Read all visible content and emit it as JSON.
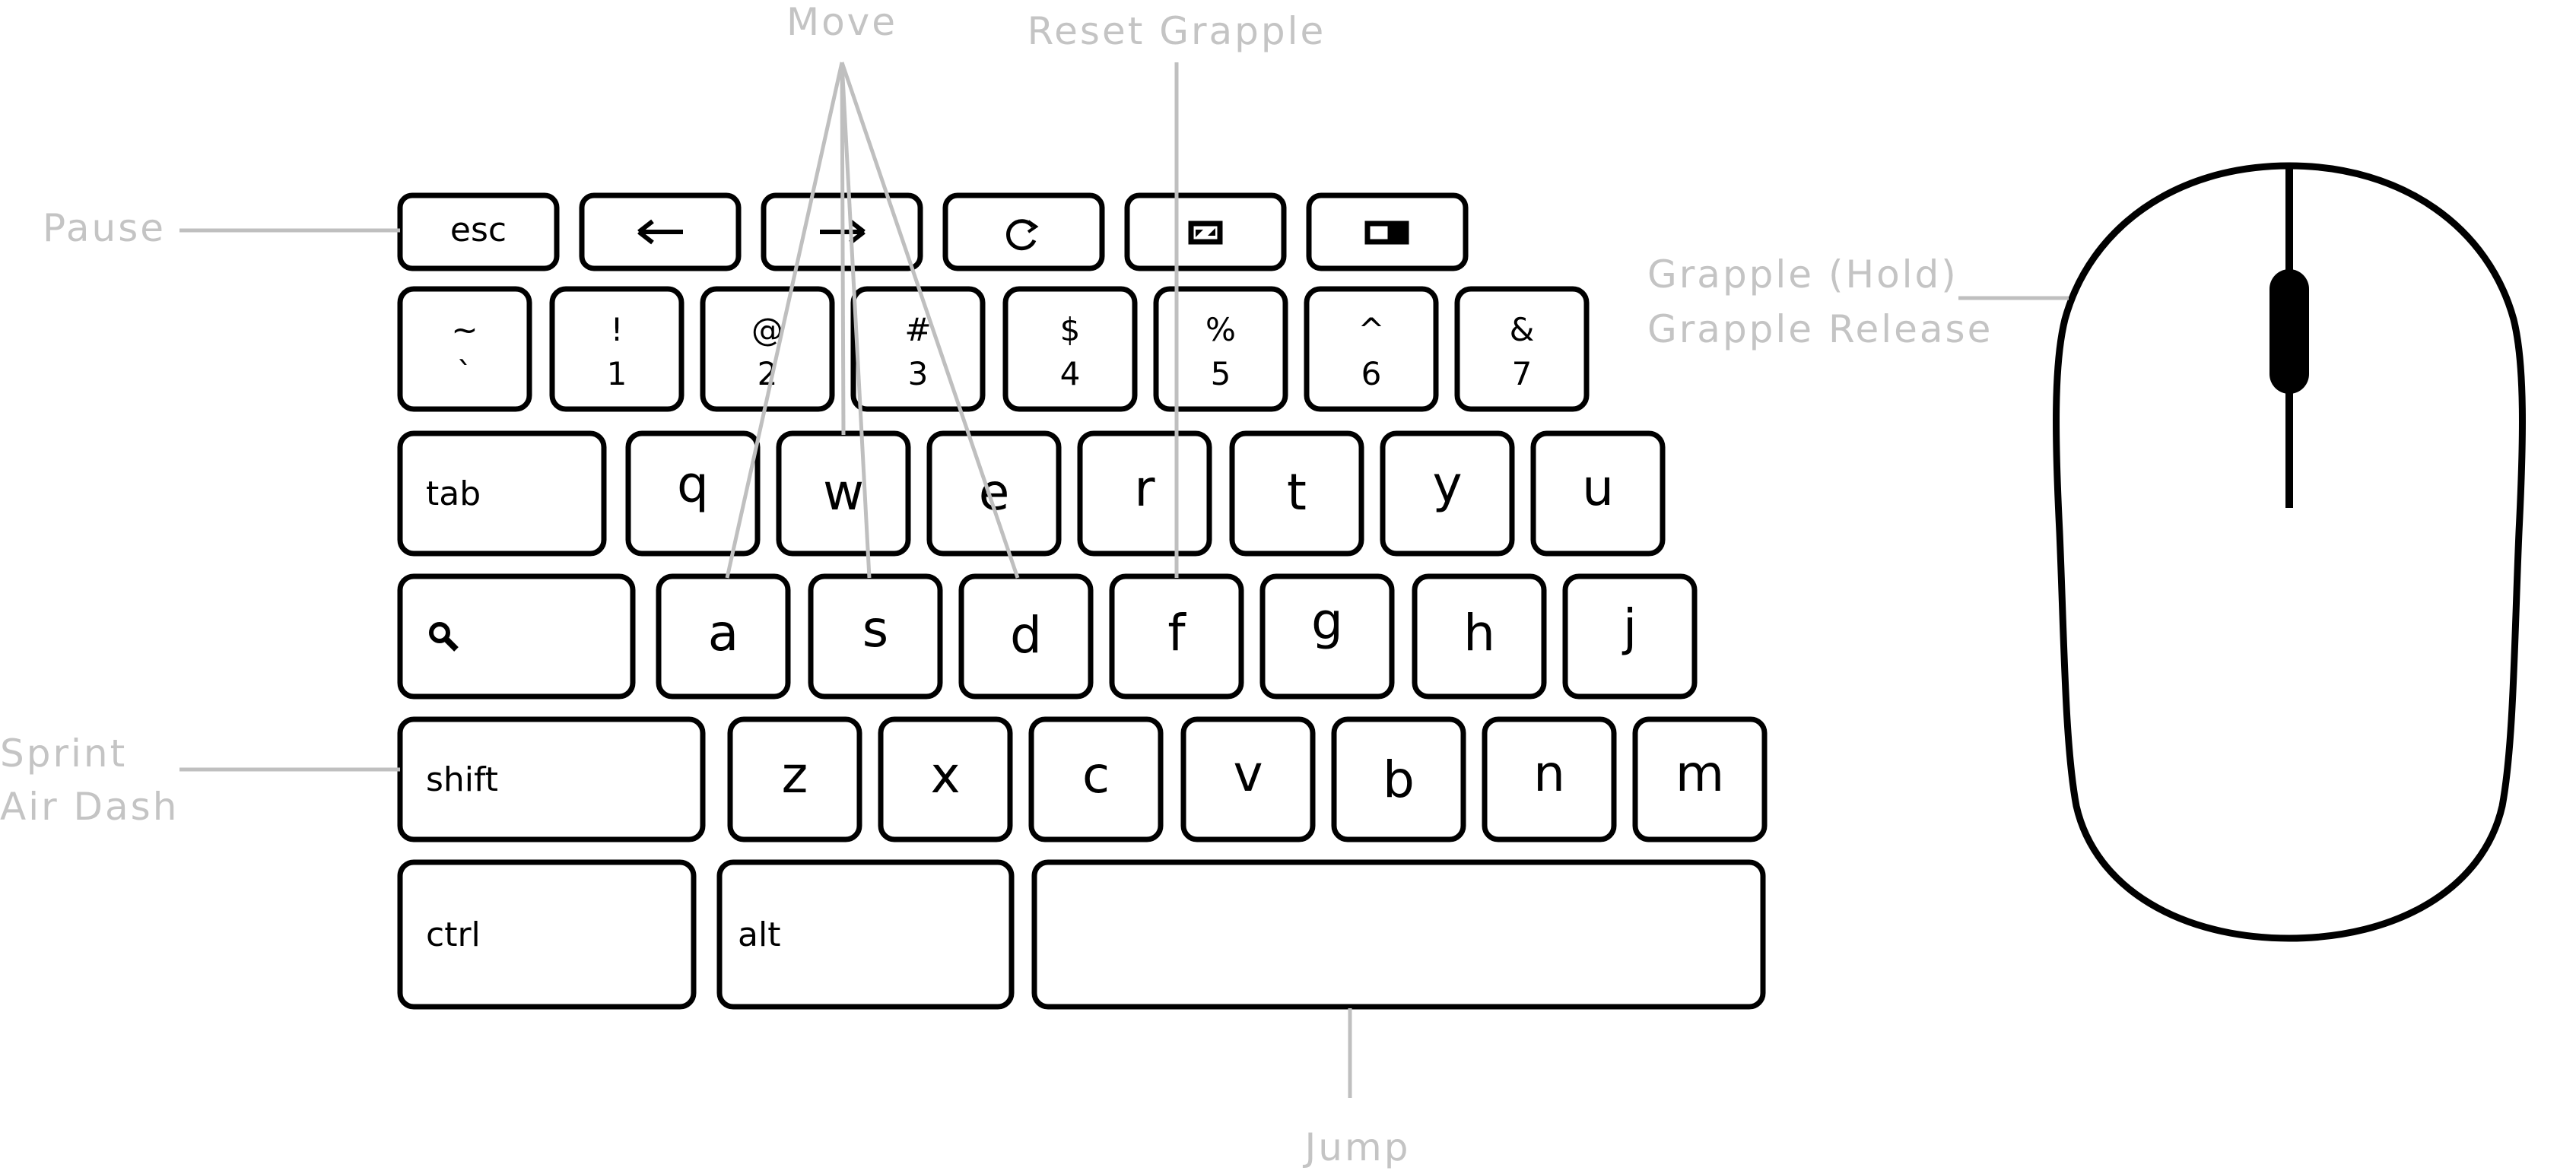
{
  "keyboard": {
    "top_row": [
      {
        "id": "esc",
        "label": "esc"
      },
      {
        "id": "back",
        "icon": "arrow-left-icon",
        "glyph": "←"
      },
      {
        "id": "forward",
        "icon": "arrow-right-icon",
        "glyph": "→"
      },
      {
        "id": "refresh",
        "icon": "refresh-icon",
        "glyph": "⟳"
      },
      {
        "id": "fullscreen",
        "icon": "fullscreen-icon",
        "glyph": "▣"
      },
      {
        "id": "overview",
        "icon": "overview-icon",
        "glyph": "▭"
      }
    ],
    "number_row": [
      {
        "top": "~",
        "bottom": "`"
      },
      {
        "top": "!",
        "bottom": "1"
      },
      {
        "top": "@",
        "bottom": "2"
      },
      {
        "top": "#",
        "bottom": "3"
      },
      {
        "top": "$",
        "bottom": "4"
      },
      {
        "top": "%",
        "bottom": "5"
      },
      {
        "top": "^",
        "bottom": "6"
      },
      {
        "top": "&",
        "bottom": "7"
      }
    ],
    "qwerty_row": [
      "tab",
      "q",
      "w",
      "e",
      "r",
      "t",
      "y",
      "u"
    ],
    "home_row": [
      {
        "label": "",
        "icon": "search-icon"
      },
      {
        "label": "a"
      },
      {
        "label": "s"
      },
      {
        "label": "d"
      },
      {
        "label": "f"
      },
      {
        "label": "g"
      },
      {
        "label": "h"
      },
      {
        "label": "j"
      }
    ],
    "bottom_row": [
      "shift",
      "z",
      "x",
      "c",
      "v",
      "b",
      "n",
      "m"
    ],
    "modifier_row": [
      "ctrl",
      "alt",
      ""
    ]
  },
  "labels": {
    "move": "Move",
    "reset_grapple": "Reset Grapple",
    "pause": "Pause",
    "grapple_hold": "Grapple (Hold)",
    "grapple_release": "Grapple Release",
    "sprint": "Sprint",
    "air_dash": "Air Dash",
    "jump": "Jump"
  },
  "colors": {
    "key_stroke": "#000000",
    "label_text": "#c4c4c4",
    "leader_line": "#bfbfbf"
  }
}
